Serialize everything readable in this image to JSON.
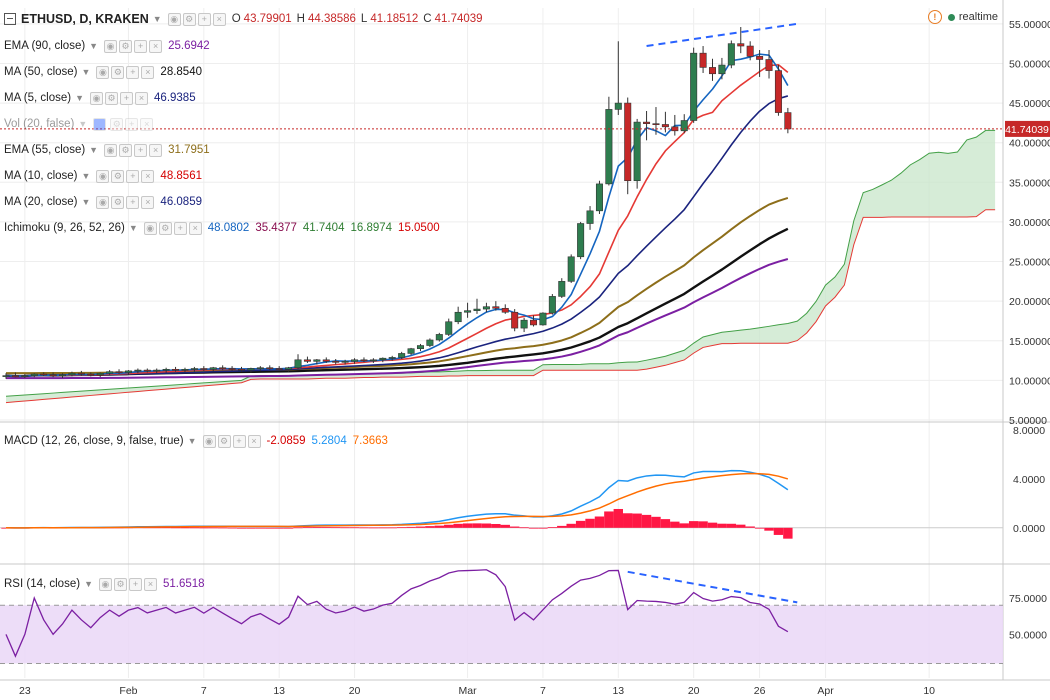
{
  "header": {
    "symbol": "ETHUSD, D, KRAKEN",
    "ohlc": [
      {
        "k": "O",
        "v": "43.79901"
      },
      {
        "k": "H",
        "v": "44.38586"
      },
      {
        "k": "L",
        "v": "41.18512"
      },
      {
        "k": "C",
        "v": "41.74039"
      }
    ],
    "realtime_label": "realtime"
  },
  "legends": [
    {
      "id": "ema90",
      "label": "EMA (90, close)",
      "vals": [
        "25.6942"
      ],
      "colors": [
        "#7b1fa2"
      ]
    },
    {
      "id": "ma50",
      "label": "MA (50, close)",
      "vals": [
        "28.8540"
      ],
      "colors": [
        "#111111"
      ]
    },
    {
      "id": "ma5",
      "label": "MA (5, close)",
      "vals": [
        "46.9385"
      ],
      "colors": [
        "#1a237e"
      ]
    },
    {
      "id": "vol",
      "label": "Vol (20, false)",
      "vals": [],
      "colors": []
    },
    {
      "id": "ema55",
      "label": "EMA (55, close)",
      "vals": [
        "31.7951"
      ],
      "colors": [
        "#8d6e1a"
      ]
    },
    {
      "id": "ma10",
      "label": "MA (10, close)",
      "vals": [
        "48.8561"
      ],
      "colors": [
        "#d50000"
      ]
    },
    {
      "id": "ma20",
      "label": "MA (20, close)",
      "vals": [
        "46.0859"
      ],
      "colors": [
        "#1a237e"
      ]
    },
    {
      "id": "ichi",
      "label": "Ichimoku (9, 26, 52, 26)",
      "vals": [
        "48.0802",
        "35.4377",
        "41.7404",
        "16.8974",
        "15.0500"
      ],
      "colors": [
        "#1565c0",
        "#880e4f",
        "#2e7d32",
        "#2e7d32",
        "#d50000"
      ]
    },
    {
      "id": "macd",
      "label": "MACD (12, 26, close, 9, false, true)",
      "vals": [
        "-2.0859",
        "5.2804",
        "7.3663"
      ],
      "colors": [
        "#d50000",
        "#2196f3",
        "#ff6d00"
      ]
    },
    {
      "id": "rsi",
      "label": "RSI (14, close)",
      "vals": [
        "51.6518"
      ],
      "colors": [
        "#7b1fa2"
      ]
    }
  ],
  "price_axis": {
    "ticks": [
      "55.00000",
      "50.00000",
      "45.00000",
      "40.00000",
      "35.00000",
      "30.00000",
      "25.00000",
      "20.00000",
      "15.00000",
      "10.00000",
      "5.00000"
    ],
    "last_price": "41.74039"
  },
  "macd_axis": {
    "ticks": [
      "8.0000",
      "4.0000",
      "0.0000"
    ]
  },
  "rsi_axis": {
    "ticks": [
      "75.0000",
      "50.0000"
    ]
  },
  "time_axis": {
    "labels": [
      "23",
      "Feb",
      "7",
      "13",
      "20",
      "Mar",
      "7",
      "13",
      "20",
      "26",
      "Apr",
      "10"
    ]
  },
  "colors": {
    "up": "#2e7d4f",
    "down": "#c62828",
    "grid": "#eeeeee",
    "cloud": "#c8e6c9",
    "rsi_band": "#ead7f7",
    "macd_hist": "#ff1744"
  },
  "chart_data": [
    {
      "type": "candlestick",
      "title": "ETHUSD, D, KRAKEN",
      "y_range": [
        5,
        57
      ],
      "x_labels": [
        "23",
        "Feb",
        "7",
        "13",
        "20",
        "Mar",
        "7",
        "13",
        "20",
        "26",
        "Apr",
        "10"
      ],
      "series": [
        {
          "name": "EMA (90, close)",
          "last": 25.6942
        },
        {
          "name": "MA (50, close)",
          "last": 28.854
        },
        {
          "name": "MA (5, close)",
          "last": 46.9385
        },
        {
          "name": "EMA (55, close)",
          "last": 31.7951
        },
        {
          "name": "MA (10, close)",
          "last": 48.8561
        },
        {
          "name": "MA (20, close)",
          "last": 46.0859
        },
        {
          "name": "Ichimoku (9, 26, 52, 26)",
          "values": [
            48.0802,
            35.4377,
            41.7404,
            16.8974,
            15.05
          ]
        }
      ],
      "candles": [
        {
          "o": 10.5,
          "h": 10.9,
          "l": 10.2,
          "c": 10.6
        },
        {
          "o": 10.6,
          "h": 11.0,
          "l": 10.4,
          "c": 10.5
        },
        {
          "o": 10.5,
          "h": 10.8,
          "l": 10.3,
          "c": 10.6
        },
        {
          "o": 10.6,
          "h": 10.9,
          "l": 10.4,
          "c": 10.8
        },
        {
          "o": 10.8,
          "h": 11.0,
          "l": 10.5,
          "c": 10.7
        },
        {
          "o": 10.7,
          "h": 11.0,
          "l": 10.4,
          "c": 10.6
        },
        {
          "o": 10.6,
          "h": 10.9,
          "l": 10.3,
          "c": 10.7
        },
        {
          "o": 10.7,
          "h": 11.1,
          "l": 10.5,
          "c": 10.9
        },
        {
          "o": 10.9,
          "h": 11.2,
          "l": 10.6,
          "c": 10.8
        },
        {
          "o": 10.8,
          "h": 11.0,
          "l": 10.5,
          "c": 10.7
        },
        {
          "o": 10.7,
          "h": 11.0,
          "l": 10.4,
          "c": 10.9
        },
        {
          "o": 10.9,
          "h": 11.3,
          "l": 10.7,
          "c": 11.1
        },
        {
          "o": 11.1,
          "h": 11.4,
          "l": 10.8,
          "c": 11.0
        },
        {
          "o": 11.0,
          "h": 11.3,
          "l": 10.7,
          "c": 11.2
        },
        {
          "o": 11.2,
          "h": 11.5,
          "l": 10.9,
          "c": 11.3
        },
        {
          "o": 11.3,
          "h": 11.5,
          "l": 11.0,
          "c": 11.2
        },
        {
          "o": 11.2,
          "h": 11.5,
          "l": 10.9,
          "c": 11.3
        },
        {
          "o": 11.3,
          "h": 11.6,
          "l": 11.0,
          "c": 11.4
        },
        {
          "o": 11.4,
          "h": 11.7,
          "l": 11.1,
          "c": 11.3
        },
        {
          "o": 11.3,
          "h": 11.6,
          "l": 11.0,
          "c": 11.4
        },
        {
          "o": 11.4,
          "h": 11.7,
          "l": 11.1,
          "c": 11.5
        },
        {
          "o": 11.5,
          "h": 11.8,
          "l": 11.2,
          "c": 11.4
        },
        {
          "o": 11.4,
          "h": 11.7,
          "l": 11.1,
          "c": 11.6
        },
        {
          "o": 11.6,
          "h": 11.9,
          "l": 11.3,
          "c": 11.5
        },
        {
          "o": 11.5,
          "h": 11.8,
          "l": 11.2,
          "c": 11.4
        },
        {
          "o": 11.4,
          "h": 11.7,
          "l": 11.1,
          "c": 11.3
        },
        {
          "o": 11.3,
          "h": 11.6,
          "l": 11.0,
          "c": 11.5
        },
        {
          "o": 11.5,
          "h": 11.8,
          "l": 11.2,
          "c": 11.6
        },
        {
          "o": 11.6,
          "h": 11.9,
          "l": 11.3,
          "c": 11.5
        },
        {
          "o": 11.5,
          "h": 11.8,
          "l": 11.2,
          "c": 11.4
        },
        {
          "o": 11.4,
          "h": 11.7,
          "l": 11.1,
          "c": 11.6
        },
        {
          "o": 11.6,
          "h": 13.3,
          "l": 11.4,
          "c": 12.6
        },
        {
          "o": 12.6,
          "h": 13.0,
          "l": 12.2,
          "c": 12.4
        },
        {
          "o": 12.4,
          "h": 12.7,
          "l": 12.0,
          "c": 12.6
        },
        {
          "o": 12.6,
          "h": 12.9,
          "l": 12.2,
          "c": 12.4
        },
        {
          "o": 12.4,
          "h": 12.7,
          "l": 12.0,
          "c": 12.3
        },
        {
          "o": 12.3,
          "h": 12.6,
          "l": 12.0,
          "c": 12.4
        },
        {
          "o": 12.4,
          "h": 12.8,
          "l": 12.1,
          "c": 12.6
        },
        {
          "o": 12.6,
          "h": 12.9,
          "l": 12.3,
          "c": 12.5
        },
        {
          "o": 12.5,
          "h": 12.8,
          "l": 12.2,
          "c": 12.6
        },
        {
          "o": 12.6,
          "h": 12.9,
          "l": 12.3,
          "c": 12.8
        },
        {
          "o": 12.8,
          "h": 13.1,
          "l": 12.5,
          "c": 12.9
        },
        {
          "o": 12.9,
          "h": 13.6,
          "l": 12.7,
          "c": 13.4
        },
        {
          "o": 13.4,
          "h": 14.1,
          "l": 13.2,
          "c": 14.0
        },
        {
          "o": 14.0,
          "h": 14.6,
          "l": 13.7,
          "c": 14.4
        },
        {
          "o": 14.4,
          "h": 15.3,
          "l": 14.2,
          "c": 15.1
        },
        {
          "o": 15.1,
          "h": 16.0,
          "l": 14.9,
          "c": 15.8
        },
        {
          "o": 15.8,
          "h": 17.8,
          "l": 15.6,
          "c": 17.4
        },
        {
          "o": 17.4,
          "h": 19.3,
          "l": 17.1,
          "c": 18.6
        },
        {
          "o": 18.6,
          "h": 19.8,
          "l": 17.9,
          "c": 18.8
        },
        {
          "o": 18.8,
          "h": 20.3,
          "l": 18.4,
          "c": 19.0
        },
        {
          "o": 19.0,
          "h": 19.8,
          "l": 18.6,
          "c": 19.3
        },
        {
          "o": 19.3,
          "h": 20.0,
          "l": 18.8,
          "c": 19.1
        },
        {
          "o": 19.1,
          "h": 19.6,
          "l": 18.4,
          "c": 18.6
        },
        {
          "o": 18.6,
          "h": 19.0,
          "l": 16.2,
          "c": 16.6
        },
        {
          "o": 16.6,
          "h": 17.9,
          "l": 16.1,
          "c": 17.6
        },
        {
          "o": 17.6,
          "h": 18.2,
          "l": 16.8,
          "c": 17.0
        },
        {
          "o": 17.0,
          "h": 18.6,
          "l": 16.9,
          "c": 18.5
        },
        {
          "o": 18.5,
          "h": 20.9,
          "l": 18.3,
          "c": 20.6
        },
        {
          "o": 20.6,
          "h": 22.9,
          "l": 20.4,
          "c": 22.5
        },
        {
          "o": 22.5,
          "h": 25.9,
          "l": 22.3,
          "c": 25.6
        },
        {
          "o": 25.6,
          "h": 30.0,
          "l": 25.3,
          "c": 29.8
        },
        {
          "o": 29.8,
          "h": 32.0,
          "l": 29.0,
          "c": 31.4
        },
        {
          "o": 31.4,
          "h": 35.2,
          "l": 31.0,
          "c": 34.8
        },
        {
          "o": 34.8,
          "h": 45.8,
          "l": 34.6,
          "c": 44.2
        },
        {
          "o": 44.2,
          "h": 52.8,
          "l": 43.5,
          "c": 45.0
        },
        {
          "o": 45.0,
          "h": 45.7,
          "l": 33.5,
          "c": 35.2
        },
        {
          "o": 35.2,
          "h": 43.0,
          "l": 34.2,
          "c": 42.6
        },
        {
          "o": 42.6,
          "h": 44.0,
          "l": 40.3,
          "c": 42.4
        },
        {
          "o": 42.4,
          "h": 44.5,
          "l": 41.0,
          "c": 42.3
        },
        {
          "o": 42.3,
          "h": 43.9,
          "l": 41.3,
          "c": 42.0
        },
        {
          "o": 42.0,
          "h": 43.5,
          "l": 40.9,
          "c": 41.5
        },
        {
          "o": 41.5,
          "h": 43.6,
          "l": 41.2,
          "c": 42.8
        },
        {
          "o": 42.8,
          "h": 52.0,
          "l": 42.5,
          "c": 51.3
        },
        {
          "o": 51.3,
          "h": 52.2,
          "l": 48.8,
          "c": 49.5
        },
        {
          "o": 49.5,
          "h": 50.6,
          "l": 47.8,
          "c": 48.7
        },
        {
          "o": 48.7,
          "h": 50.7,
          "l": 48.0,
          "c": 49.8
        },
        {
          "o": 49.8,
          "h": 52.9,
          "l": 49.4,
          "c": 52.5
        },
        {
          "o": 52.5,
          "h": 54.6,
          "l": 51.3,
          "c": 52.2
        },
        {
          "o": 52.2,
          "h": 52.8,
          "l": 50.4,
          "c": 50.9
        },
        {
          "o": 50.9,
          "h": 51.7,
          "l": 48.3,
          "c": 50.5
        },
        {
          "o": 50.5,
          "h": 51.7,
          "l": 48.1,
          "c": 49.1
        },
        {
          "o": 49.1,
          "h": 49.8,
          "l": 43.4,
          "c": 43.8
        },
        {
          "o": 43.8,
          "h": 44.39,
          "l": 41.19,
          "c": 41.74
        }
      ],
      "annotations": [
        "trendline_high_to_high"
      ]
    },
    {
      "type": "bar",
      "title": "MACD (12, 26, close, 9, false, true)",
      "y_range": [
        -2.8,
        8.5
      ],
      "series": [
        {
          "name": "histogram",
          "last": -2.0859
        },
        {
          "name": "MACD",
          "last": 5.2804
        },
        {
          "name": "signal",
          "last": 7.3663
        }
      ]
    },
    {
      "type": "line",
      "title": "RSI (14, close)",
      "y_range": [
        20,
        97
      ],
      "series": [
        {
          "name": "RSI",
          "last": 51.6518
        }
      ],
      "bands": [
        30,
        70
      ]
    }
  ]
}
